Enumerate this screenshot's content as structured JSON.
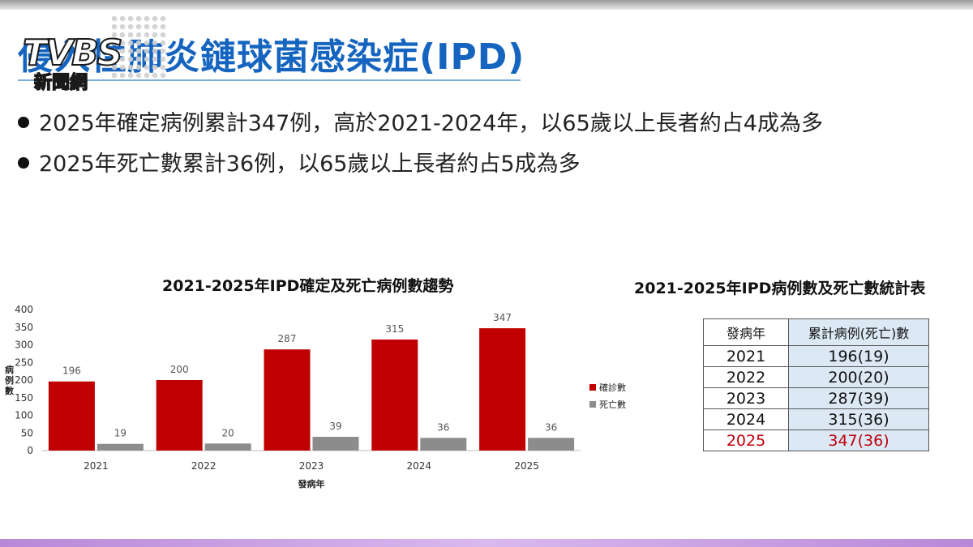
{
  "slide": {
    "title": "侵入性肺炎鏈球菌感染症(IPD)",
    "bullets": [
      "2025年確定病例累計347例，高於2021-2024年，以65歲以上長者約占4成為多",
      "2025年死亡數累計36例，以65歲以上長者約占5成為多"
    ]
  },
  "logo": {
    "name": "TVBS",
    "sub": "新聞網"
  },
  "chart_data": {
    "type": "bar",
    "title": "2021-2025年IPD確定及死亡病例數趨勢",
    "xlabel": "發病年",
    "ylabel": "病例數",
    "categories": [
      "2021",
      "2022",
      "2023",
      "2024",
      "2025"
    ],
    "series": [
      {
        "name": "確診數",
        "values": [
          196,
          200,
          287,
          315,
          347
        ],
        "color": "#c00000"
      },
      {
        "name": "死亡數",
        "values": [
          19,
          20,
          39,
          36,
          36
        ],
        "color": "#8c8c8c"
      }
    ],
    "ylim": [
      0,
      400
    ],
    "yticks": [
      0,
      50,
      100,
      150,
      200,
      250,
      300,
      350,
      400
    ],
    "legend": "right",
    "grid": false
  },
  "table": {
    "title": "2021-2025年IPD病例數及死亡數統計表",
    "headers": [
      "發病年",
      "累計病例(死亡)數"
    ],
    "rows": [
      [
        "2021",
        "196(19)"
      ],
      [
        "2022",
        "200(20)"
      ],
      [
        "2023",
        "287(39)"
      ],
      [
        "2024",
        "315(36)"
      ],
      [
        "2025",
        "347(36)"
      ]
    ],
    "highlight_color": "#c0000c"
  }
}
